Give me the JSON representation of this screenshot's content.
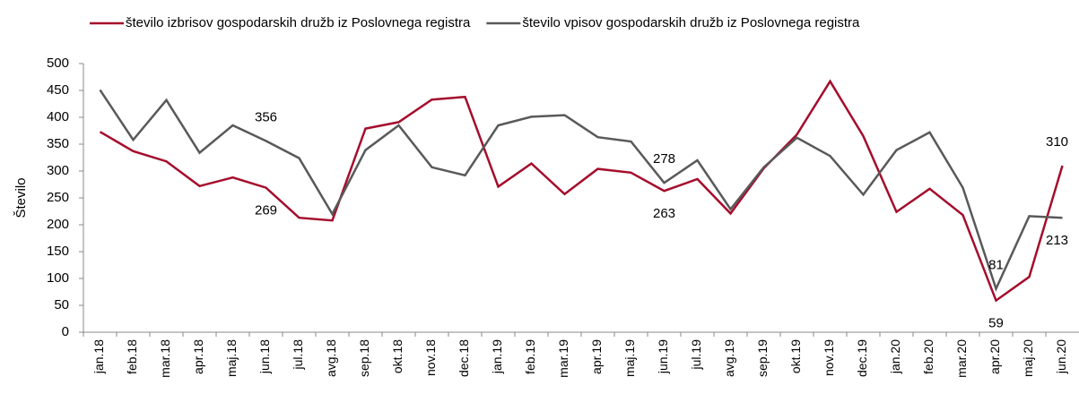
{
  "chart_data": {
    "type": "line",
    "y_label": "Število",
    "categories": [
      "jan.18",
      "feb.18",
      "mar.18",
      "apr.18",
      "maj.18",
      "jun.18",
      "jul.18",
      "avg.18",
      "sep.18",
      "okt.18",
      "nov.18",
      "dec.18",
      "jan.19",
      "feb.19",
      "mar.19",
      "apr.19",
      "maj.19",
      "jun.19",
      "jul.19",
      "avg.19",
      "sep.19",
      "okt.19",
      "nov.19",
      "dec.19",
      "jan.20",
      "feb.20",
      "mar.20",
      "apr.20",
      "maj.20",
      "jun.20"
    ],
    "series": [
      {
        "name": "število izbrisov gospodarskih družb iz Poslovnega registra",
        "color": "#a50d2c",
        "values": [
          373,
          337,
          318,
          272,
          288,
          269,
          213,
          208,
          379,
          391,
          433,
          438,
          271,
          314,
          257,
          304,
          297,
          263,
          285,
          221,
          305,
          368,
          467,
          365,
          224,
          267,
          218,
          59,
          103,
          310
        ]
      },
      {
        "name": "število vpisov gospodarskih družb iz Poslovnega registra",
        "color": "#595959",
        "values": [
          451,
          358,
          432,
          334,
          385,
          356,
          324,
          220,
          339,
          385,
          307,
          292,
          385,
          401,
          404,
          363,
          355,
          278,
          320,
          229,
          307,
          362,
          328,
          256,
          339,
          372,
          269,
          81,
          216,
          213
        ]
      }
    ],
    "labeled_indices": [
      5,
      17,
      27,
      29
    ],
    "ylim": [
      0,
      500
    ],
    "yticks": [
      0,
      50,
      100,
      150,
      200,
      250,
      300,
      350,
      400,
      450,
      500
    ],
    "grid": false
  }
}
